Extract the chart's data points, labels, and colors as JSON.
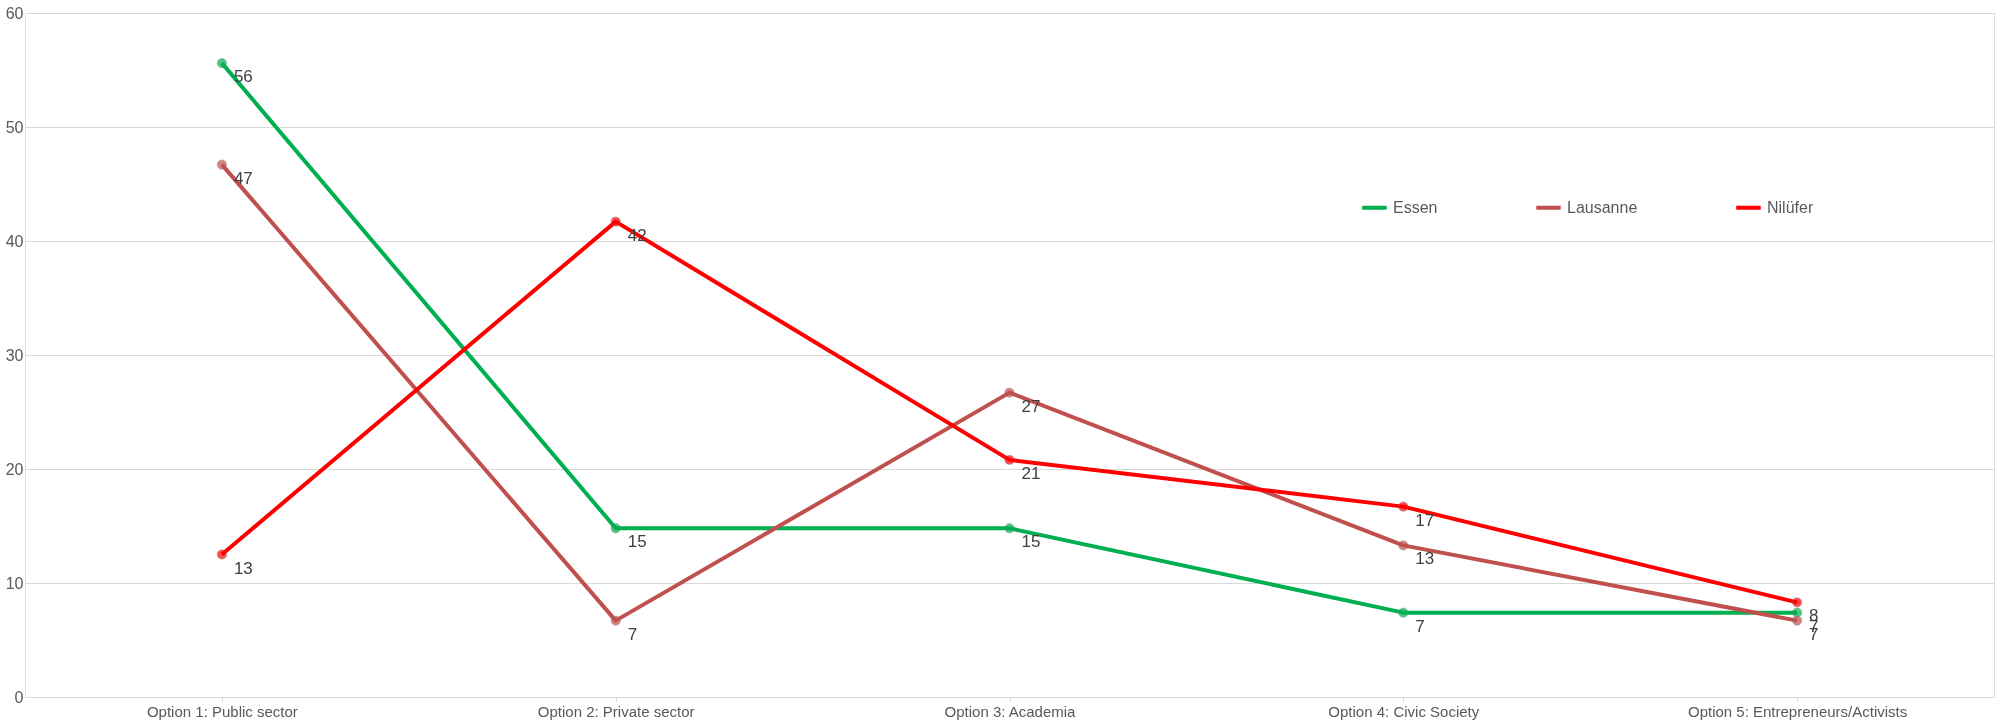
{
  "chart_data": {
    "type": "line",
    "categories": [
      "Option 1: Public sector",
      "Option 2: Private sector",
      "Option 3: Academia",
      "Option 4: Civic Society",
      "Option 5: Entrepreneurs/Activists"
    ],
    "series": [
      {
        "name": "Essen",
        "color": "#00b050",
        "values": [
          55.6,
          14.8,
          14.8,
          7.4,
          7.4
        ],
        "value_labels": [
          "56",
          "15",
          "15",
          "7",
          "7"
        ]
      },
      {
        "name": "Lausanne",
        "color": "#c0504d",
        "values": [
          46.7,
          6.7,
          26.7,
          13.3,
          6.7
        ],
        "value_labels": [
          "47",
          "7",
          "27",
          "13",
          "7"
        ]
      },
      {
        "name": "Nilüfer",
        "color": "#ff0000",
        "values": [
          12.5,
          41.7,
          20.8,
          16.7,
          8.3
        ],
        "value_labels": [
          "13",
          "42",
          "21",
          "17",
          "8"
        ]
      }
    ],
    "ylim": [
      0,
      60
    ],
    "yticks": [
      0,
      10,
      20,
      30,
      40,
      50,
      60
    ],
    "grid": "y",
    "legend": "top right",
    "marker": "circle",
    "line_style": "solid"
  }
}
